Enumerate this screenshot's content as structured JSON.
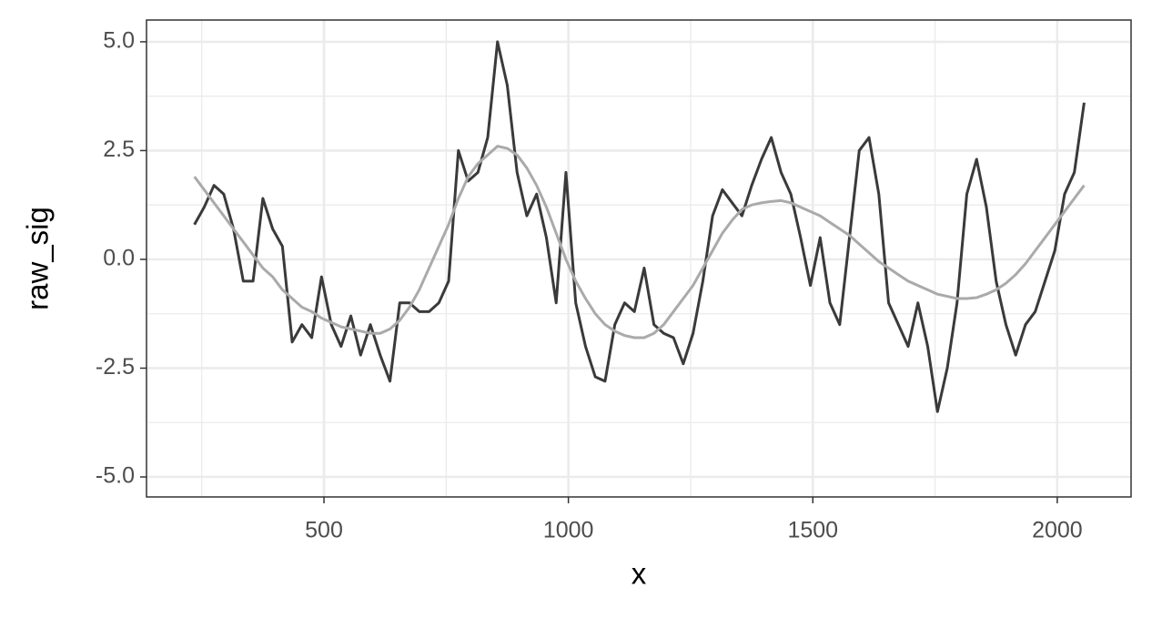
{
  "chart_data": {
    "type": "line",
    "x_label": "x",
    "y_label": "raw_sig",
    "x": [
      235,
      255,
      275,
      295,
      315,
      335,
      355,
      375,
      395,
      415,
      435,
      455,
      475,
      495,
      515,
      535,
      555,
      575,
      595,
      615,
      635,
      655,
      675,
      695,
      715,
      735,
      755,
      775,
      795,
      815,
      835,
      855,
      875,
      895,
      915,
      935,
      955,
      975,
      995,
      1015,
      1035,
      1055,
      1075,
      1095,
      1115,
      1135,
      1155,
      1175,
      1195,
      1215,
      1235,
      1255,
      1275,
      1295,
      1315,
      1335,
      1355,
      1375,
      1395,
      1415,
      1435,
      1455,
      1475,
      1495,
      1515,
      1535,
      1555,
      1575,
      1595,
      1615,
      1635,
      1655,
      1675,
      1695,
      1715,
      1735,
      1755,
      1775,
      1795,
      1815,
      1835,
      1855,
      1875,
      1895,
      1915,
      1935,
      1955,
      1975,
      1995,
      2015,
      2035,
      2055
    ],
    "series": [
      {
        "color": "#3a3a3a",
        "values": [
          0.8,
          1.2,
          1.7,
          1.5,
          0.7,
          -0.5,
          -0.5,
          1.4,
          0.7,
          0.3,
          -1.9,
          -1.5,
          -1.8,
          -0.4,
          -1.5,
          -2.0,
          -1.3,
          -2.2,
          -1.5,
          -2.2,
          -2.8,
          -1.0,
          -1.0,
          -1.2,
          -1.2,
          -1.0,
          -0.5,
          2.5,
          1.8,
          2.0,
          2.8,
          5.0,
          4.0,
          2.0,
          1.0,
          1.5,
          0.5,
          -1.0,
          2.0,
          -1.0,
          -2.0,
          -2.7,
          -2.8,
          -1.5,
          -1.0,
          -1.2,
          -0.2,
          -1.5,
          -1.7,
          -1.8,
          -2.4,
          -1.7,
          -0.5,
          1.0,
          1.6,
          1.3,
          1.0,
          1.7,
          2.3,
          2.8,
          2.0,
          1.5,
          0.5,
          -0.6,
          0.5,
          -1.0,
          -1.5,
          0.5,
          2.5,
          2.8,
          1.5,
          -1.0,
          -1.5,
          -2.0,
          -1.0,
          -2.0,
          -3.5,
          -2.5,
          -1.0,
          1.5,
          2.3,
          1.2,
          -0.5,
          -1.5,
          -2.2,
          -1.5,
          -1.2,
          -0.5,
          0.2,
          1.5,
          2.0,
          3.6
        ]
      },
      {
        "color": "#aaaaaa",
        "values": [
          1.9,
          1.6,
          1.3,
          1.0,
          0.7,
          0.4,
          0.1,
          -0.2,
          -0.4,
          -0.7,
          -0.9,
          -1.1,
          -1.2,
          -1.35,
          -1.45,
          -1.55,
          -1.6,
          -1.65,
          -1.7,
          -1.7,
          -1.6,
          -1.4,
          -1.1,
          -0.7,
          -0.2,
          0.3,
          0.8,
          1.4,
          1.9,
          2.2,
          2.4,
          2.6,
          2.55,
          2.4,
          2.1,
          1.7,
          1.2,
          0.6,
          0.0,
          -0.5,
          -0.9,
          -1.25,
          -1.5,
          -1.65,
          -1.75,
          -1.8,
          -1.8,
          -1.7,
          -1.5,
          -1.2,
          -0.9,
          -0.6,
          -0.2,
          0.2,
          0.6,
          0.9,
          1.15,
          1.25,
          1.3,
          1.33,
          1.35,
          1.3,
          1.2,
          1.1,
          1.0,
          0.85,
          0.7,
          0.55,
          0.35,
          0.15,
          -0.05,
          -0.2,
          -0.35,
          -0.5,
          -0.6,
          -0.7,
          -0.8,
          -0.85,
          -0.9,
          -0.9,
          -0.88,
          -0.8,
          -0.7,
          -0.55,
          -0.35,
          -0.1,
          0.2,
          0.5,
          0.8,
          1.1,
          1.4,
          1.7
        ]
      }
    ],
    "xlim": [
      137,
      2151
    ],
    "ylim": [
      -5.46,
      5.5
    ],
    "xticks": [
      500,
      1000,
      1500,
      2000
    ],
    "yticks": [
      {
        "value": 5,
        "label": "5.0"
      },
      2.5,
      {
        "value": 0,
        "label": "0.0"
      },
      -2.5,
      {
        "value": -5,
        "label": "-5.0"
      }
    ],
    "x_minor_grid": [
      250,
      750,
      1250,
      1750
    ],
    "y_minor_grid": [
      3.75,
      1.25,
      -1.25,
      -3.75
    ],
    "grid": true
  }
}
